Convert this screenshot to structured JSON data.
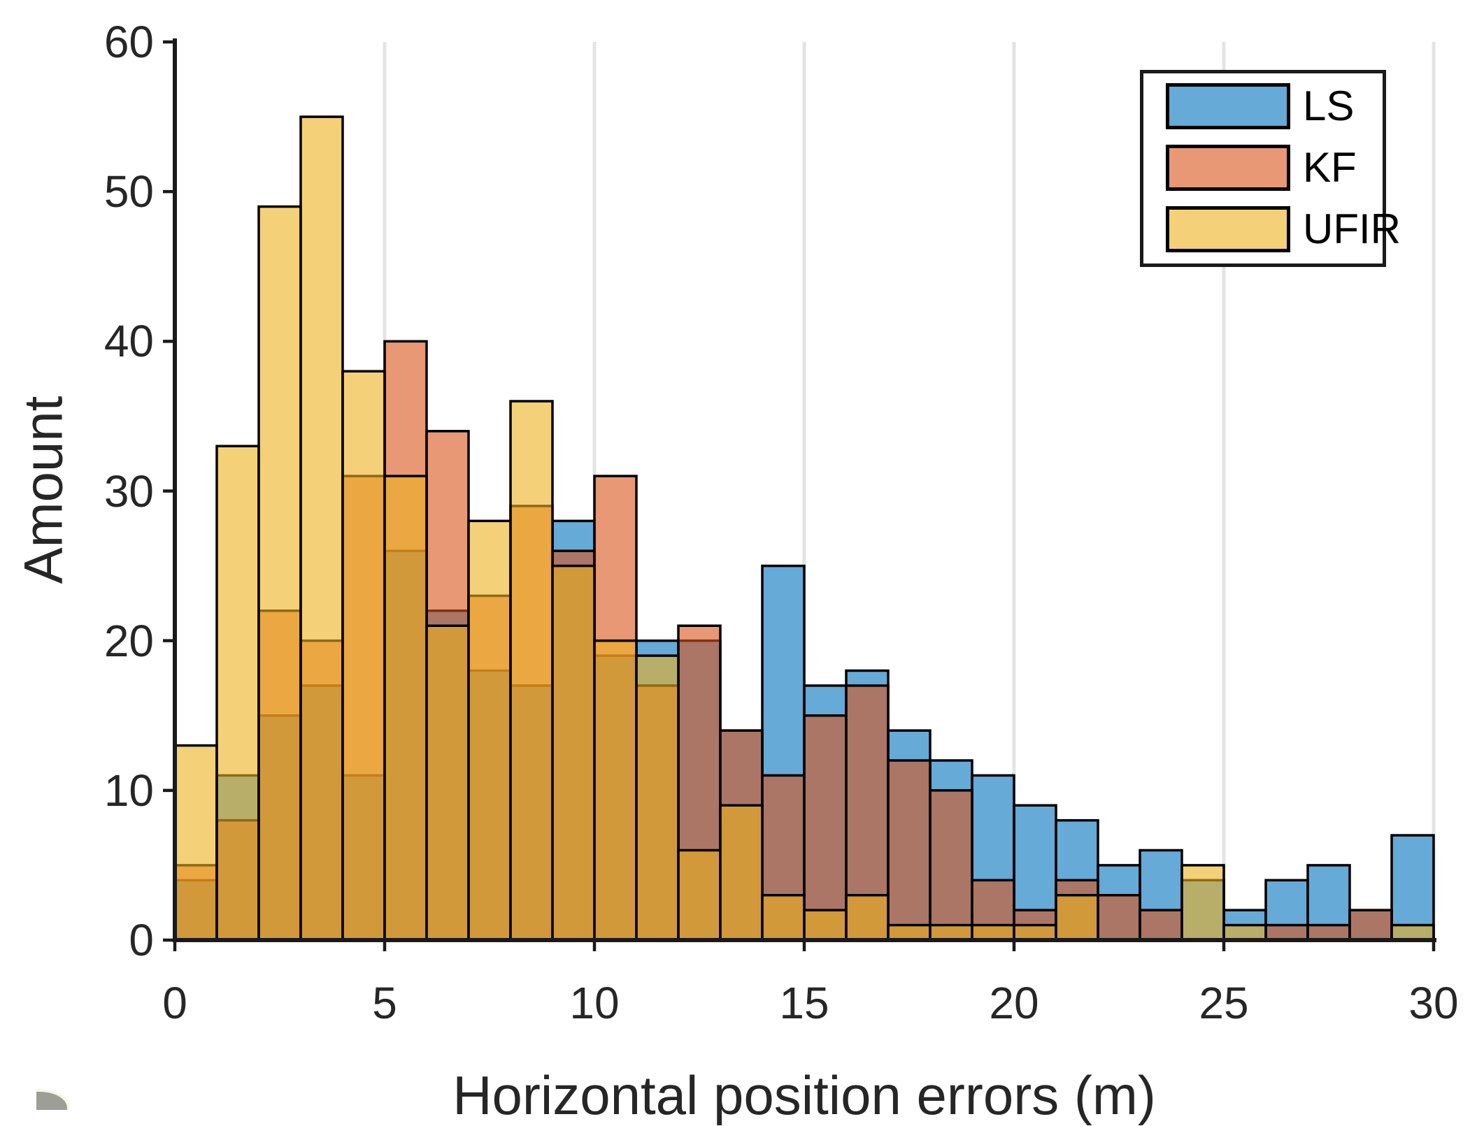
{
  "figure": {
    "background": "#ffffff",
    "text_color": "#262626",
    "grid_color": "#e4e4e4",
    "axis_color": "#1a1a1a",
    "bar_edge_color": "#000000"
  },
  "chart_data": {
    "type": "bar",
    "subtype": "overlaid-histogram",
    "title": "",
    "xlabel": "Horizontal position errors (m)",
    "ylabel": "Amount",
    "bin_start": 0,
    "bin_width": 1,
    "xlim": [
      0,
      30
    ],
    "ylim": [
      0,
      60
    ],
    "xticks": [
      "0",
      "5",
      "10",
      "15",
      "20",
      "25",
      "30"
    ],
    "xtick_values": [
      0,
      5,
      10,
      15,
      20,
      25,
      30
    ],
    "yticks": [
      "0",
      "10",
      "20",
      "30",
      "40",
      "50",
      "60"
    ],
    "ytick_values": [
      0,
      10,
      20,
      30,
      40,
      50,
      60
    ],
    "grid": "vertical-only",
    "legend_position": "top-right",
    "face_alpha": 0.6,
    "categories": [
      0,
      1,
      2,
      3,
      4,
      5,
      6,
      7,
      8,
      9,
      10,
      11,
      12,
      13,
      14,
      15,
      16,
      17,
      18,
      19,
      20,
      21,
      22,
      23,
      24,
      25,
      26,
      27,
      28,
      29
    ],
    "series": [
      {
        "name": "LS",
        "color": "#0072BD",
        "values": [
          4,
          11,
          15,
          17,
          11,
          26,
          22,
          18,
          17,
          28,
          19,
          20,
          20,
          14,
          25,
          17,
          18,
          14,
          12,
          11,
          9,
          8,
          5,
          6,
          4,
          2,
          4,
          5,
          2,
          7
        ]
      },
      {
        "name": "KF",
        "color": "#D95319",
        "values": [
          5,
          8,
          22,
          20,
          31,
          40,
          34,
          23,
          29,
          26,
          31,
          17,
          21,
          14,
          11,
          15,
          17,
          12,
          10,
          4,
          2,
          4,
          3,
          2,
          0,
          0,
          1,
          1,
          2,
          0
        ]
      },
      {
        "name": "UFIR",
        "color": "#EDB120",
        "values": [
          13,
          33,
          49,
          55,
          38,
          31,
          21,
          28,
          36,
          25,
          20,
          19,
          6,
          9,
          3,
          2,
          3,
          1,
          1,
          1,
          1,
          3,
          0,
          0,
          5,
          1,
          0,
          0,
          0,
          1
        ]
      }
    ]
  },
  "legend": {
    "items": [
      {
        "label": "LS",
        "color": "#0072BD"
      },
      {
        "label": "KF",
        "color": "#D95319"
      },
      {
        "label": "UFIR",
        "color": "#EDB120"
      }
    ]
  },
  "labels": {
    "xlabel": "Horizontal position errors (m)",
    "ylabel": "Amount"
  }
}
